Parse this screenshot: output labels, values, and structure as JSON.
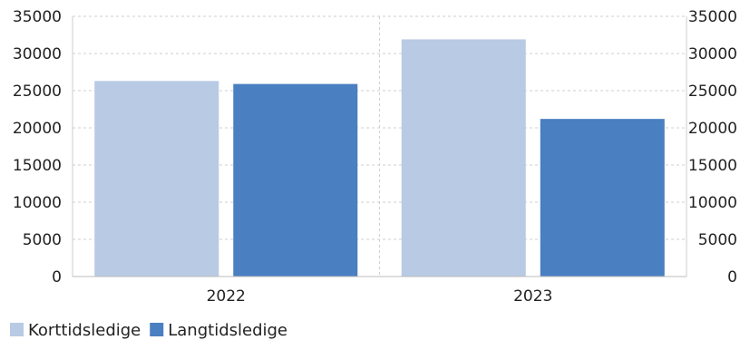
{
  "chart_data": {
    "type": "bar",
    "categories": [
      "2022",
      "2023"
    ],
    "series": [
      {
        "name": "Korttidsledige",
        "color": "#b8cae4",
        "values": [
          26300,
          31900
        ]
      },
      {
        "name": "Langtidsledige",
        "color": "#4a7fc1",
        "values": [
          25900,
          21200
        ]
      }
    ],
    "title": "",
    "xlabel": "",
    "ylabel": "",
    "ylim": [
      0,
      35000
    ],
    "yticks": [
      0,
      5000,
      10000,
      15000,
      20000,
      25000,
      30000,
      35000
    ],
    "secondary_y_axis": true,
    "grid": true,
    "legend_position": "bottom-left"
  }
}
